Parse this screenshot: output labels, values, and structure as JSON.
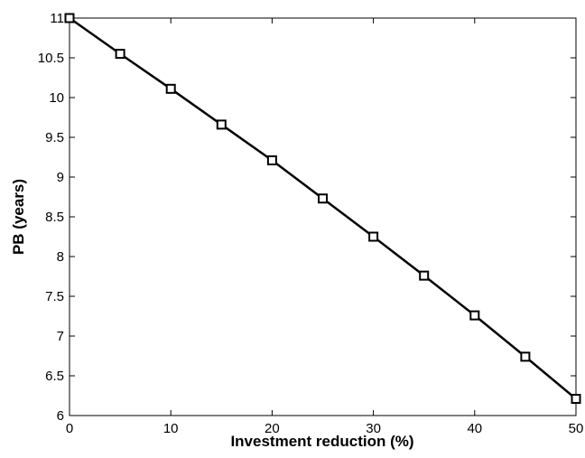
{
  "chart_data": {
    "type": "line",
    "title": "",
    "xlabel": "Investment reduction (%)",
    "ylabel": "PB (years)",
    "xlim": [
      0,
      50
    ],
    "ylim": [
      6,
      11
    ],
    "grid": false,
    "legend": "none",
    "x_ticks": [
      "0",
      "10",
      "20",
      "30",
      "40",
      "50"
    ],
    "y_ticks": [
      "6",
      "6.5",
      "7",
      "7.5",
      "8",
      "8.5",
      "9",
      "9.5",
      "10",
      "10.5",
      "11"
    ],
    "series": [
      {
        "marker": "square",
        "color": "#000000",
        "x": [
          0,
          5,
          10,
          15,
          20,
          25,
          30,
          35,
          40,
          45,
          50
        ],
        "y": [
          11.0,
          10.55,
          10.11,
          9.66,
          9.21,
          8.73,
          8.25,
          7.76,
          7.26,
          6.74,
          6.21
        ]
      }
    ]
  }
}
